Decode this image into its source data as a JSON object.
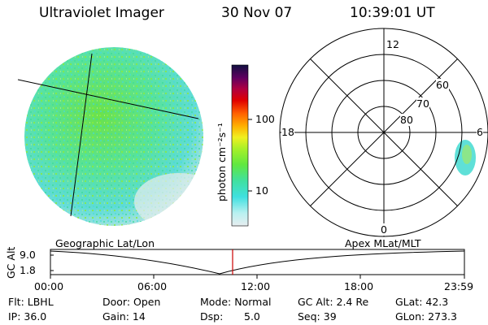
{
  "header": {
    "title": "Ultraviolet Imager",
    "date": "30 Nov 07",
    "time": "10:39:01 UT"
  },
  "colorbar": {
    "label": "photon cm⁻²s⁻¹",
    "ticks": [
      "100",
      "10"
    ]
  },
  "polar": {
    "mlt_labels": [
      "12",
      "18",
      "6",
      "0"
    ],
    "lat_labels": [
      "60",
      "70",
      "80"
    ]
  },
  "timeline": {
    "left_title": "Geographic Lat/Lon",
    "right_title": "Apex MLat/MLT",
    "y_axis_label": "GC Alt",
    "y_ticks": [
      "9.0",
      "1.8"
    ],
    "x_ticks": [
      "00:00",
      "06:00",
      "12:00",
      "18:00",
      "23:59"
    ],
    "current_marker_color": "#cc0000"
  },
  "info": {
    "flt": "Flt: LBHL",
    "ip": "IP: 36.0",
    "door": "Door: Open",
    "gain": "Gain: 14",
    "mode": "Mode: Normal",
    "dsp_label": "Dsp:",
    "dsp_value": "5.0",
    "gcalt": "GC Alt: 2.4 Re",
    "seq": "Seq: 39",
    "glat": "GLat:  42.3",
    "glon": "GLon: 273.3"
  },
  "colors": {
    "earth_green": "#7ee83a",
    "earth_cyan": "#4fe2dc",
    "earth_pale": "#d6ecec",
    "accent_red": "#cc0000"
  }
}
